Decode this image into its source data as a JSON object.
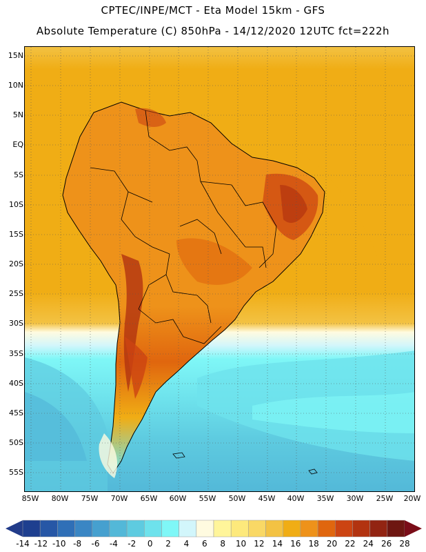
{
  "header": {
    "title_line1": "CPTEC/INPE/MCT -  Eta Model 15km - GFS",
    "title_line2": "Absolute Temperature (C) 850hPa - 14/12/2020 12UTC fct=222h"
  },
  "map": {
    "region": "South America",
    "lat_labels": [
      "15N",
      "10N",
      "5N",
      "EQ",
      "5S",
      "10S",
      "15S",
      "20S",
      "25S",
      "30S",
      "35S",
      "40S",
      "45S",
      "50S",
      "55S"
    ],
    "lon_labels": [
      "85W",
      "80W",
      "75W",
      "70W",
      "65W",
      "60W",
      "55W",
      "50W",
      "45W",
      "40W",
      "35W",
      "30W",
      "25W",
      "20W"
    ]
  },
  "colorbar": {
    "labels": [
      "-14",
      "-12",
      "-10",
      "-8",
      "-6",
      "-4",
      "-2",
      "0",
      "2",
      "4",
      "6",
      "8",
      "10",
      "12",
      "14",
      "16",
      "18",
      "20",
      "22",
      "24",
      "26",
      "28"
    ],
    "colors": [
      "#1e3f8f",
      "#2757a6",
      "#2f6fb7",
      "#3a86c4",
      "#46a0cf",
      "#53b8d8",
      "#5ecbe0",
      "#6ee2ec",
      "#7ff7f7",
      "#d2f6fb",
      "#fffbe0",
      "#fff59a",
      "#fde97c",
      "#f9d865",
      "#f3c243",
      "#f0ad15",
      "#ee921a",
      "#e0660e",
      "#cc4412",
      "#b23310",
      "#922412",
      "#6e1611"
    ],
    "under_color": "#223c8a",
    "over_color": "#7a0d18"
  }
}
